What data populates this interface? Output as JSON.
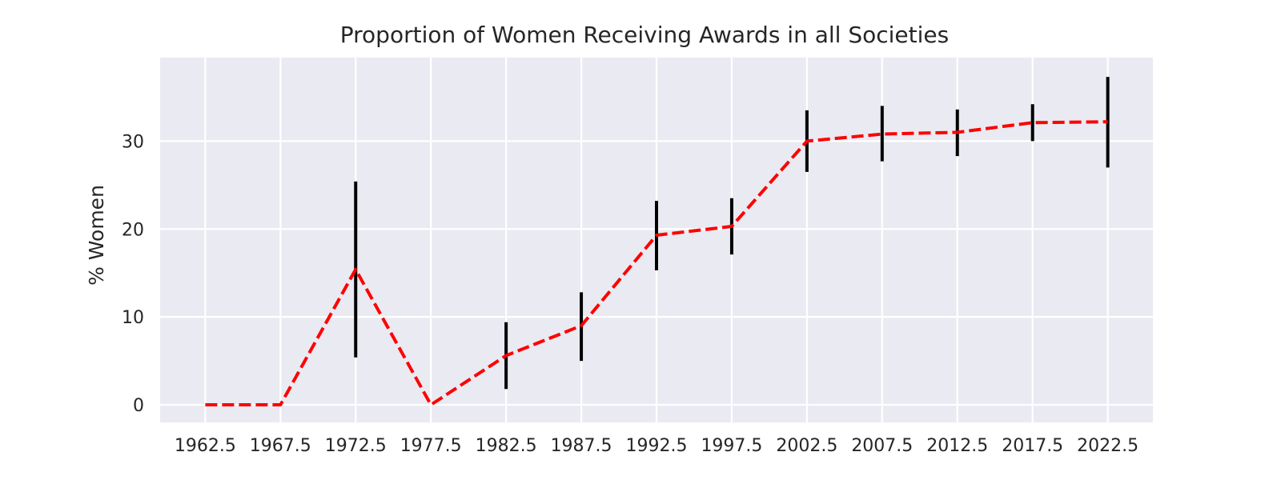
{
  "chart_data": {
    "type": "line",
    "title": "Proportion of Women Receiving Awards in all Societies",
    "xlabel": "",
    "ylabel": "% Women",
    "x": [
      1962.5,
      1967.5,
      1972.5,
      1977.5,
      1982.5,
      1987.5,
      1992.5,
      1997.5,
      2002.5,
      2007.5,
      2012.5,
      2017.5,
      2022.5
    ],
    "x_tick_labels": [
      "1962.5",
      "1967.5",
      "1972.5",
      "1977.5",
      "1982.5",
      "1987.5",
      "1992.5",
      "1997.5",
      "2002.5",
      "2007.5",
      "2012.5",
      "2017.5",
      "2022.5"
    ],
    "y_ticks": [
      0,
      10,
      20,
      30
    ],
    "y_tick_labels": [
      "0",
      "10",
      "20",
      "30"
    ],
    "xlim": [
      1959.5,
      2025.5
    ],
    "ylim": [
      -2,
      39.5
    ],
    "grid": true,
    "legend": "none",
    "series": [
      {
        "values": [
          0,
          0,
          15.4,
          0,
          5.6,
          9.0,
          19.3,
          20.3,
          30.0,
          30.8,
          31.0,
          32.1,
          32.2
        ],
        "error_low": [
          null,
          null,
          5.4,
          null,
          1.8,
          5.0,
          15.3,
          17.1,
          26.5,
          27.7,
          28.3,
          30.0,
          27.0
        ],
        "error_high": [
          null,
          null,
          25.4,
          null,
          9.4,
          12.8,
          23.2,
          23.5,
          33.5,
          34.0,
          33.6,
          34.2,
          37.3
        ],
        "line_color": "#ff0000",
        "line_style": "dashed",
        "error_color": "#000000"
      }
    ],
    "colors": {
      "plot_background": "#eaeaf2",
      "grid": "#ffffff",
      "text": "#262626"
    }
  }
}
